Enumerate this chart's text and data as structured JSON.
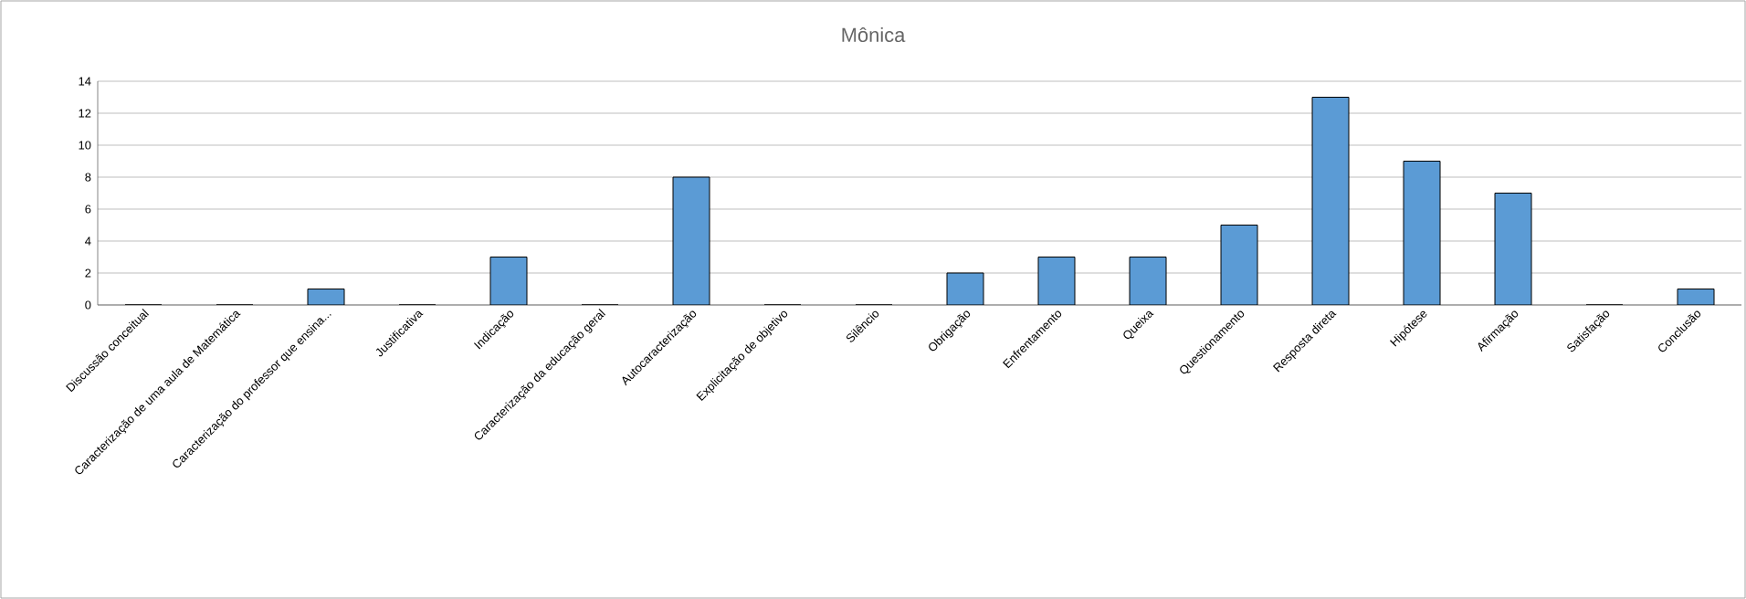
{
  "chart_data": {
    "type": "bar",
    "title": "Mônica",
    "categories": [
      "Discussão conceitual",
      "Caracterização de uma aula de Matemática",
      "Caracterização do professor que ensina...",
      "Justificativa",
      "Indicação",
      "Caracterização da educação geral",
      "Autocaracterização",
      "Explicitação de objetivo",
      "Silêncio",
      "Obrigação",
      "Enfrentamento",
      "Queixa",
      "Questionamento",
      "Resposta direta",
      "Hipótese",
      "Afirmação",
      "Satisfação",
      "Conclusão"
    ],
    "values": [
      0,
      0,
      1,
      0,
      3,
      0,
      8,
      0,
      0,
      2,
      3,
      3,
      5,
      13,
      9,
      7,
      0,
      1
    ],
    "color": "#5b9bd5",
    "ylim": [
      0,
      14
    ],
    "yticks": [
      0,
      2,
      4,
      6,
      8,
      10,
      12,
      14
    ],
    "grid": "y"
  }
}
